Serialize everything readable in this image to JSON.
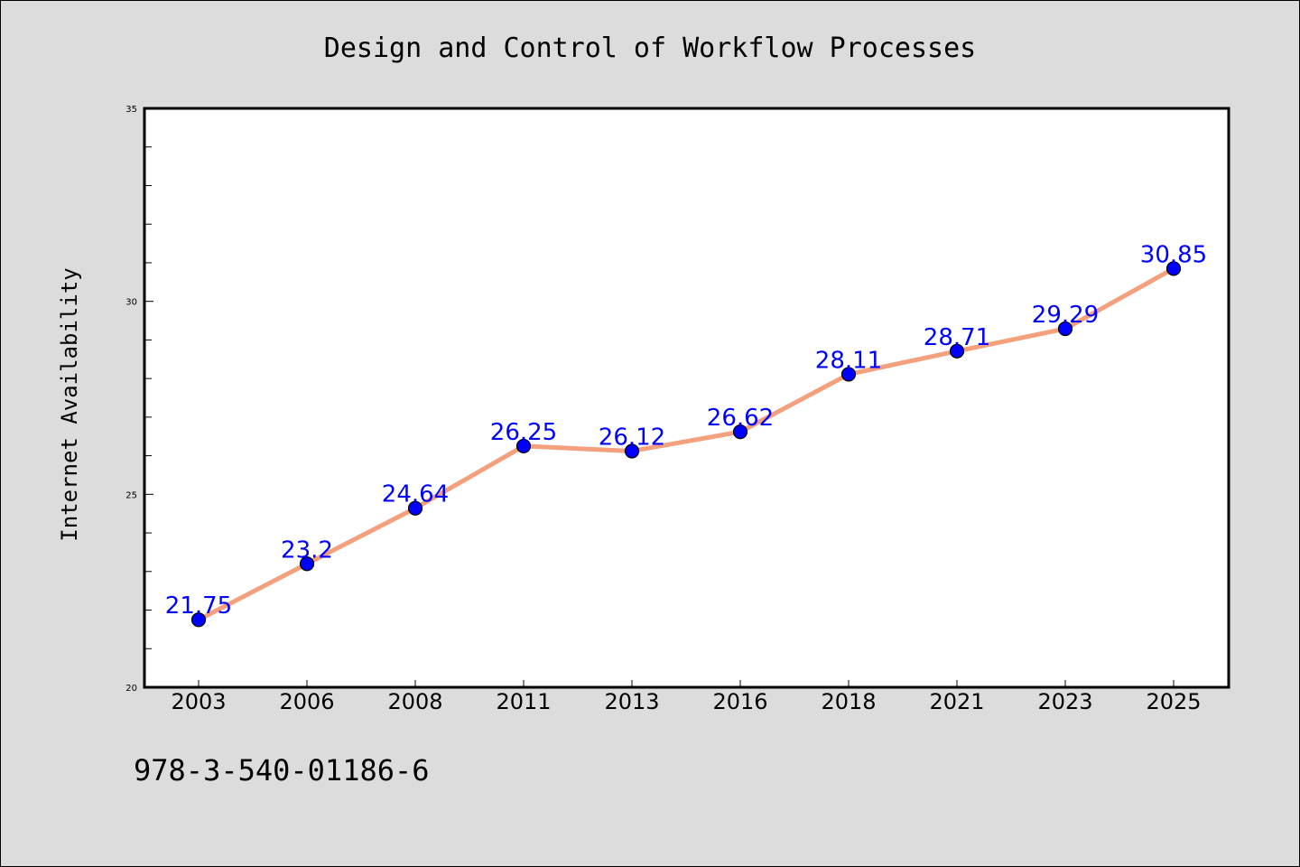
{
  "chart_data": {
    "type": "line",
    "title": "Design and Control of Workflow Processes",
    "xlabel": "",
    "ylabel": "Internet Availability",
    "categories": [
      "2003",
      "2006",
      "2008",
      "2011",
      "2013",
      "2016",
      "2018",
      "2021",
      "2023",
      "2025"
    ],
    "series": [
      {
        "values": [
          21.75,
          23.2,
          24.64,
          26.25,
          26.12,
          26.62,
          28.11,
          28.71,
          29.29,
          30.85
        ]
      }
    ],
    "data_labels": [
      "21.75",
      "23.2",
      "24.64",
      "26.25",
      "26.12",
      "26.62",
      "28.11",
      "28.71",
      "29.29",
      "30.85"
    ],
    "ylim": [
      20,
      35
    ],
    "yticks": [
      "20",
      "25",
      "30",
      "35"
    ],
    "grid": false,
    "legend": "none",
    "line_color": "#f4a07c",
    "marker_color": "#0000ff",
    "label_color": "#0000ff",
    "background_color": "#dcdcdc",
    "plot_background": "#ffffff"
  },
  "annotation": {
    "text": "978-3-540-01186-6"
  }
}
